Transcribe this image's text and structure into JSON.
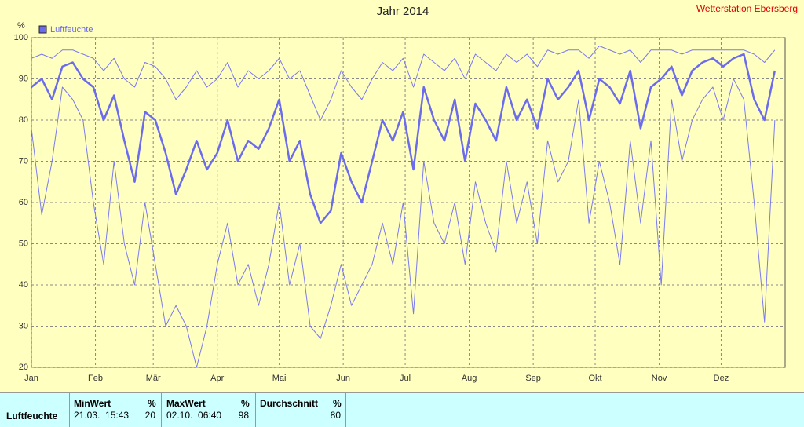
{
  "chart_data": {
    "type": "line",
    "title": "Jahr 2014",
    "annotations": [
      "Wetterstation Ebersberg"
    ],
    "ylabel": "%",
    "x": [
      0,
      5,
      10,
      15,
      20,
      25,
      30,
      35,
      40,
      45,
      50,
      55,
      60,
      65,
      70,
      75,
      80,
      85,
      90,
      95,
      100,
      105,
      110,
      115,
      120,
      125,
      130,
      135,
      140,
      145,
      150,
      155,
      160,
      165,
      170,
      175,
      180,
      185,
      190,
      195,
      200,
      205,
      210,
      215,
      220,
      225,
      230,
      235,
      240,
      245,
      250,
      255,
      260,
      265,
      270,
      275,
      280,
      285,
      290,
      295,
      300,
      305,
      310,
      315,
      320,
      325,
      330,
      335,
      340,
      345,
      350,
      355,
      360
    ],
    "series": [
      {
        "name": "Luftfeuchte",
        "color": "#6b6bee",
        "width": 2.5,
        "values": [
          88,
          90,
          85,
          93,
          94,
          90,
          88,
          80,
          86,
          75,
          65,
          82,
          80,
          72,
          62,
          68,
          75,
          68,
          72,
          80,
          70,
          75,
          73,
          78,
          85,
          70,
          75,
          62,
          55,
          58,
          72,
          65,
          60,
          70,
          80,
          75,
          82,
          68,
          88,
          80,
          75,
          85,
          70,
          84,
          80,
          75,
          88,
          80,
          85,
          78,
          90,
          85,
          88,
          92,
          80,
          90,
          88,
          84,
          92,
          78,
          88,
          90,
          93,
          86,
          92,
          94,
          95,
          93,
          95,
          96,
          85,
          80,
          92
        ]
      },
      {
        "color": "#7a7af0",
        "width": 1,
        "values": [
          95,
          96,
          95,
          97,
          97,
          96,
          95,
          92,
          95,
          90,
          88,
          94,
          93,
          90,
          85,
          88,
          92,
          88,
          90,
          94,
          88,
          92,
          90,
          92,
          95,
          90,
          92,
          86,
          80,
          85,
          92,
          88,
          85,
          90,
          94,
          92,
          95,
          88,
          96,
          94,
          92,
          95,
          90,
          96,
          94,
          92,
          96,
          94,
          96,
          93,
          97,
          96,
          97,
          97,
          95,
          98,
          97,
          96,
          97,
          94,
          97,
          97,
          97,
          96,
          97,
          97,
          97,
          97,
          97,
          97,
          96,
          94,
          97
        ]
      },
      {
        "color": "#7a7af0",
        "width": 1,
        "values": [
          78,
          57,
          70,
          88,
          85,
          80,
          60,
          45,
          70,
          50,
          40,
          60,
          45,
          30,
          35,
          30,
          20,
          30,
          45,
          55,
          40,
          45,
          35,
          45,
          60,
          40,
          50,
          30,
          27,
          35,
          45,
          35,
          40,
          45,
          55,
          45,
          60,
          33,
          70,
          55,
          50,
          60,
          45,
          65,
          55,
          48,
          70,
          55,
          65,
          50,
          75,
          65,
          70,
          85,
          55,
          70,
          60,
          45,
          75,
          55,
          75,
          40,
          85,
          70,
          80,
          85,
          88,
          80,
          90,
          85,
          60,
          31,
          80
        ]
      }
    ],
    "xlim": [
      0,
      365
    ],
    "xticks": [
      {
        "value": 0,
        "label": "Jan"
      },
      {
        "value": 31,
        "label": "Feb"
      },
      {
        "value": 59,
        "label": "Mär"
      },
      {
        "value": 90,
        "label": "Apr"
      },
      {
        "value": 120,
        "label": "Mai"
      },
      {
        "value": 151,
        "label": "Jun"
      },
      {
        "value": 181,
        "label": "Jul"
      },
      {
        "value": 212,
        "label": "Aug"
      },
      {
        "value": 243,
        "label": "Sep"
      },
      {
        "value": 273,
        "label": "Okt"
      },
      {
        "value": 304,
        "label": "Nov"
      },
      {
        "value": 334,
        "label": "Dez"
      }
    ],
    "ylim": [
      20,
      100
    ],
    "yticks": [
      20,
      30,
      40,
      50,
      60,
      70,
      80,
      90,
      100
    ],
    "grid": true
  },
  "table": {
    "headers": [
      "MinWert",
      "%",
      "MaxWert",
      "%",
      "Durchschnitt",
      "%"
    ],
    "rows": [
      [
        "Luftfeuchte",
        "21.03.  15:43",
        20,
        "02.10.  06:40",
        98,
        80
      ]
    ]
  }
}
